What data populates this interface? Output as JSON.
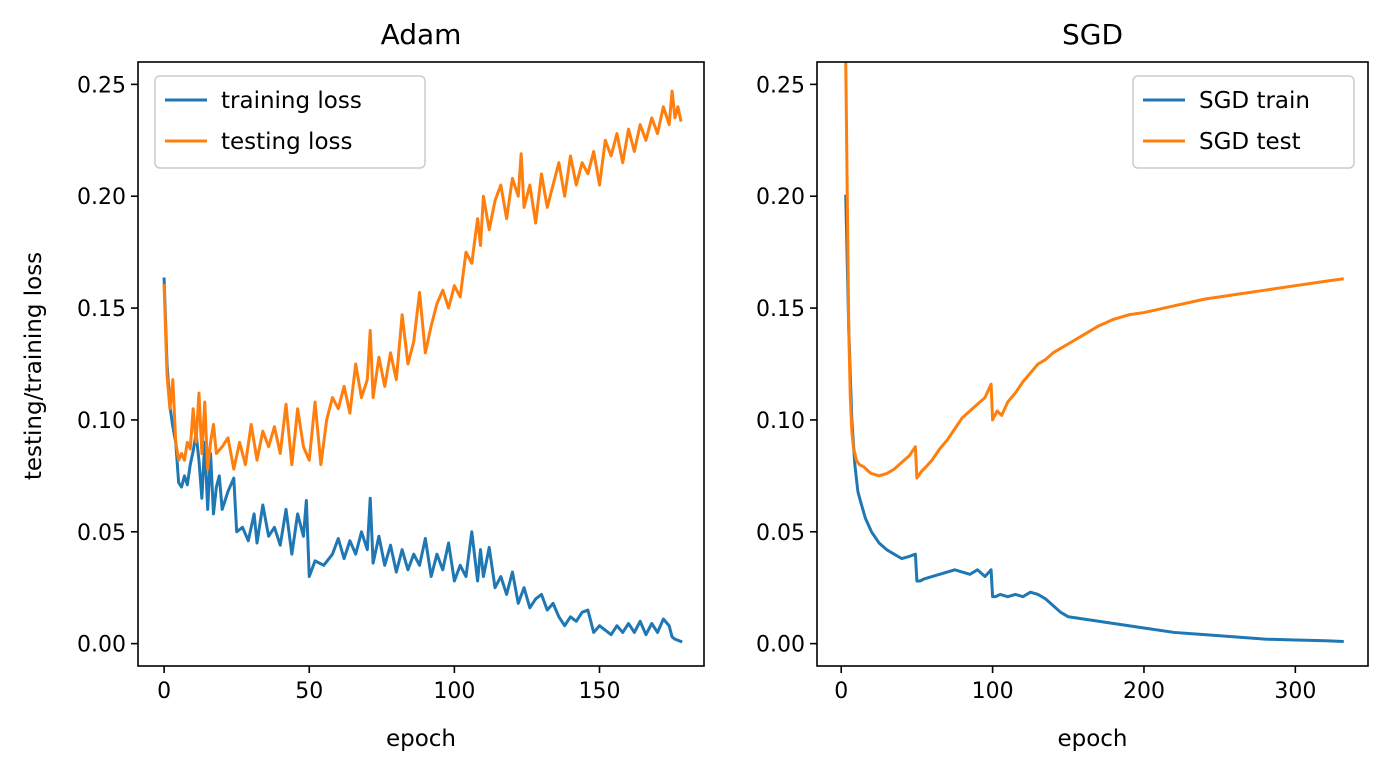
{
  "figure": {
    "ylabel": "testing/training loss"
  },
  "chart_data": [
    {
      "type": "line",
      "title": "Adam",
      "xlabel": "epoch",
      "ylabel": "testing/training loss",
      "xlim": [
        -9,
        186
      ],
      "ylim": [
        -0.01,
        0.26
      ],
      "xticks": [
        0,
        50,
        100,
        150
      ],
      "yticks": [
        0.0,
        0.05,
        0.1,
        0.15,
        0.2,
        0.25
      ],
      "ytick_labels": [
        "0.00",
        "0.05",
        "0.10",
        "0.15",
        "0.20",
        "0.25"
      ],
      "grid": false,
      "legend": "upper-left",
      "series": [
        {
          "name": "training loss",
          "color": "#1f77b4",
          "x": [
            0,
            1,
            2,
            3,
            4,
            5,
            6,
            7,
            8,
            9,
            10,
            11,
            12,
            13,
            14,
            15,
            16,
            17,
            18,
            19,
            20,
            22,
            24,
            25,
            27,
            29,
            31,
            32,
            34,
            36,
            38,
            40,
            42,
            44,
            46,
            48,
            49,
            50,
            52,
            55,
            58,
            60,
            62,
            64,
            66,
            68,
            70,
            71,
            72,
            74,
            76,
            78,
            80,
            82,
            84,
            86,
            88,
            90,
            92,
            94,
            96,
            98,
            100,
            102,
            104,
            106,
            108,
            109,
            110,
            112,
            114,
            116,
            118,
            120,
            122,
            124,
            126,
            128,
            130,
            132,
            134,
            136,
            138,
            140,
            142,
            144,
            146,
            148,
            150,
            152,
            154,
            156,
            158,
            160,
            162,
            164,
            166,
            168,
            170,
            172,
            174,
            175,
            176,
            178
          ],
          "y": [
            0.163,
            0.125,
            0.106,
            0.097,
            0.09,
            0.072,
            0.07,
            0.075,
            0.071,
            0.08,
            0.086,
            0.094,
            0.082,
            0.065,
            0.09,
            0.06,
            0.085,
            0.058,
            0.07,
            0.075,
            0.06,
            0.068,
            0.074,
            0.05,
            0.052,
            0.046,
            0.058,
            0.045,
            0.062,
            0.048,
            0.052,
            0.044,
            0.06,
            0.04,
            0.058,
            0.048,
            0.064,
            0.03,
            0.037,
            0.035,
            0.04,
            0.047,
            0.038,
            0.046,
            0.04,
            0.05,
            0.042,
            0.065,
            0.036,
            0.048,
            0.035,
            0.044,
            0.032,
            0.042,
            0.033,
            0.04,
            0.035,
            0.047,
            0.03,
            0.04,
            0.033,
            0.045,
            0.028,
            0.035,
            0.03,
            0.05,
            0.028,
            0.042,
            0.03,
            0.043,
            0.025,
            0.03,
            0.022,
            0.032,
            0.018,
            0.025,
            0.016,
            0.02,
            0.022,
            0.015,
            0.018,
            0.012,
            0.008,
            0.012,
            0.01,
            0.014,
            0.015,
            0.005,
            0.008,
            0.006,
            0.004,
            0.008,
            0.005,
            0.009,
            0.005,
            0.01,
            0.004,
            0.009,
            0.005,
            0.011,
            0.008,
            0.003,
            0.002,
            0.001
          ]
        },
        {
          "name": "testing loss",
          "color": "#ff7f0e",
          "x": [
            0,
            1,
            2,
            3,
            4,
            5,
            6,
            7,
            8,
            9,
            10,
            11,
            12,
            13,
            14,
            15,
            16,
            17,
            18,
            20,
            22,
            24,
            26,
            28,
            30,
            32,
            34,
            36,
            38,
            40,
            42,
            44,
            46,
            48,
            50,
            52,
            54,
            56,
            58,
            60,
            62,
            64,
            66,
            68,
            70,
            71,
            72,
            74,
            76,
            78,
            80,
            82,
            84,
            86,
            88,
            90,
            92,
            94,
            96,
            98,
            100,
            102,
            104,
            106,
            108,
            109,
            110,
            112,
            114,
            116,
            118,
            120,
            122,
            123,
            124,
            126,
            128,
            130,
            132,
            134,
            136,
            138,
            140,
            142,
            144,
            146,
            148,
            150,
            152,
            154,
            156,
            158,
            160,
            162,
            164,
            166,
            168,
            170,
            172,
            174,
            175,
            176,
            177,
            178
          ],
          "y": [
            0.16,
            0.12,
            0.105,
            0.118,
            0.09,
            0.082,
            0.085,
            0.082,
            0.09,
            0.087,
            0.105,
            0.09,
            0.112,
            0.085,
            0.108,
            0.078,
            0.09,
            0.098,
            0.085,
            0.088,
            0.092,
            0.078,
            0.09,
            0.08,
            0.098,
            0.082,
            0.095,
            0.088,
            0.097,
            0.085,
            0.107,
            0.08,
            0.105,
            0.088,
            0.082,
            0.108,
            0.08,
            0.1,
            0.11,
            0.105,
            0.115,
            0.103,
            0.125,
            0.11,
            0.118,
            0.14,
            0.11,
            0.128,
            0.115,
            0.13,
            0.118,
            0.147,
            0.125,
            0.135,
            0.157,
            0.13,
            0.142,
            0.152,
            0.158,
            0.15,
            0.16,
            0.155,
            0.175,
            0.17,
            0.19,
            0.178,
            0.2,
            0.185,
            0.198,
            0.205,
            0.19,
            0.208,
            0.2,
            0.219,
            0.195,
            0.205,
            0.188,
            0.21,
            0.195,
            0.205,
            0.215,
            0.2,
            0.218,
            0.205,
            0.215,
            0.21,
            0.22,
            0.205,
            0.225,
            0.218,
            0.228,
            0.215,
            0.23,
            0.22,
            0.232,
            0.225,
            0.235,
            0.228,
            0.24,
            0.232,
            0.247,
            0.235,
            0.24,
            0.234
          ]
        }
      ]
    },
    {
      "type": "line",
      "title": "SGD",
      "xlabel": "epoch",
      "xlim": [
        -16,
        348
      ],
      "ylim": [
        -0.01,
        0.26
      ],
      "xticks": [
        0,
        100,
        200,
        300
      ],
      "yticks": [
        0.0,
        0.05,
        0.1,
        0.15,
        0.2,
        0.25
      ],
      "ytick_labels": [
        "0.00",
        "0.05",
        "0.10",
        "0.15",
        "0.20",
        "0.25"
      ],
      "grid": false,
      "legend": "upper-right",
      "series": [
        {
          "name": "SGD train",
          "color": "#1f77b4",
          "x": [
            3,
            5,
            7,
            9,
            11,
            13,
            16,
            20,
            25,
            30,
            35,
            40,
            45,
            49,
            50,
            52,
            55,
            60,
            65,
            70,
            75,
            80,
            85,
            90,
            95,
            99,
            100,
            102,
            105,
            110,
            115,
            120,
            125,
            130,
            135,
            140,
            145,
            150,
            160,
            170,
            180,
            190,
            200,
            220,
            240,
            260,
            280,
            300,
            320,
            331
          ],
          "y": [
            0.2,
            0.14,
            0.1,
            0.08,
            0.068,
            0.063,
            0.056,
            0.05,
            0.045,
            0.042,
            0.04,
            0.038,
            0.039,
            0.04,
            0.028,
            0.028,
            0.029,
            0.03,
            0.031,
            0.032,
            0.033,
            0.032,
            0.031,
            0.033,
            0.03,
            0.033,
            0.021,
            0.021,
            0.022,
            0.021,
            0.022,
            0.021,
            0.023,
            0.022,
            0.02,
            0.017,
            0.014,
            0.012,
            0.011,
            0.01,
            0.009,
            0.008,
            0.007,
            0.005,
            0.004,
            0.003,
            0.002,
            0.0016,
            0.0013,
            0.001
          ]
        },
        {
          "name": "SGD test",
          "color": "#ff7f0e",
          "x": [
            3,
            4,
            5,
            6,
            7,
            8,
            10,
            12,
            15,
            18,
            20,
            25,
            30,
            35,
            40,
            45,
            49,
            50,
            53,
            56,
            60,
            65,
            70,
            75,
            80,
            85,
            90,
            95,
            99,
            100,
            103,
            106,
            110,
            115,
            120,
            125,
            130,
            135,
            140,
            145,
            150,
            160,
            170,
            180,
            190,
            200,
            220,
            240,
            260,
            280,
            300,
            320,
            331
          ],
          "y": [
            0.26,
            0.2,
            0.14,
            0.11,
            0.095,
            0.088,
            0.082,
            0.08,
            0.079,
            0.077,
            0.076,
            0.075,
            0.076,
            0.078,
            0.081,
            0.084,
            0.088,
            0.074,
            0.077,
            0.079,
            0.082,
            0.087,
            0.091,
            0.096,
            0.101,
            0.104,
            0.107,
            0.11,
            0.116,
            0.1,
            0.104,
            0.102,
            0.108,
            0.112,
            0.117,
            0.121,
            0.125,
            0.127,
            0.13,
            0.132,
            0.134,
            0.138,
            0.142,
            0.145,
            0.147,
            0.148,
            0.151,
            0.154,
            0.156,
            0.158,
            0.16,
            0.162,
            0.163
          ]
        }
      ]
    }
  ]
}
